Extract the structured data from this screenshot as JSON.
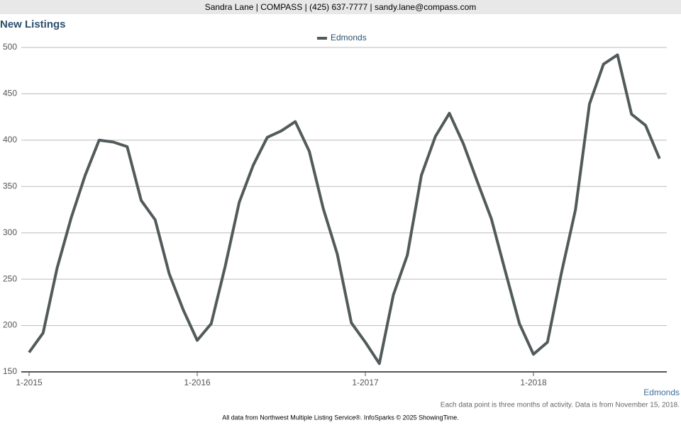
{
  "header": {
    "contact": "Sandra Lane | COMPASS | (425) 637-7777 | sandy.lane@compass.com"
  },
  "chart_data": {
    "type": "line",
    "title": "New Listings",
    "categories": [
      "1-2015",
      null,
      null,
      null,
      null,
      null,
      null,
      null,
      null,
      null,
      null,
      null,
      "1-2016",
      null,
      null,
      null,
      null,
      null,
      null,
      null,
      null,
      null,
      null,
      null,
      "1-2017",
      null,
      null,
      null,
      null,
      null,
      null,
      null,
      null,
      null,
      null,
      null,
      "1-2018",
      null,
      null,
      null,
      null,
      null,
      null,
      null,
      null,
      null
    ],
    "series": [
      {
        "name": "Edmonds",
        "color": "#525b5b",
        "values": [
          171,
          192,
          262,
          316,
          362,
          400,
          398,
          393,
          335,
          314,
          256,
          217,
          184,
          202,
          264,
          333,
          373,
          403,
          410,
          420,
          388,
          326,
          277,
          203,
          182,
          159,
          233,
          276,
          362,
          404,
          429,
          396,
          355,
          315,
          258,
          202,
          169,
          182,
          257,
          325,
          439,
          482,
          492,
          428,
          416,
          380
        ]
      }
    ],
    "ylim": [
      150,
      500
    ],
    "yticks": [
      150,
      200,
      250,
      300,
      350,
      400,
      450,
      500
    ],
    "grid": true,
    "legend": "top"
  },
  "footer": {
    "area": "Edmonds",
    "note": "Each data point is three months of activity. Data is from November 15, 2018.",
    "source": "All data from Northwest Multiple Listing Service®. InfoSparks © 2025 ShowingTime."
  }
}
